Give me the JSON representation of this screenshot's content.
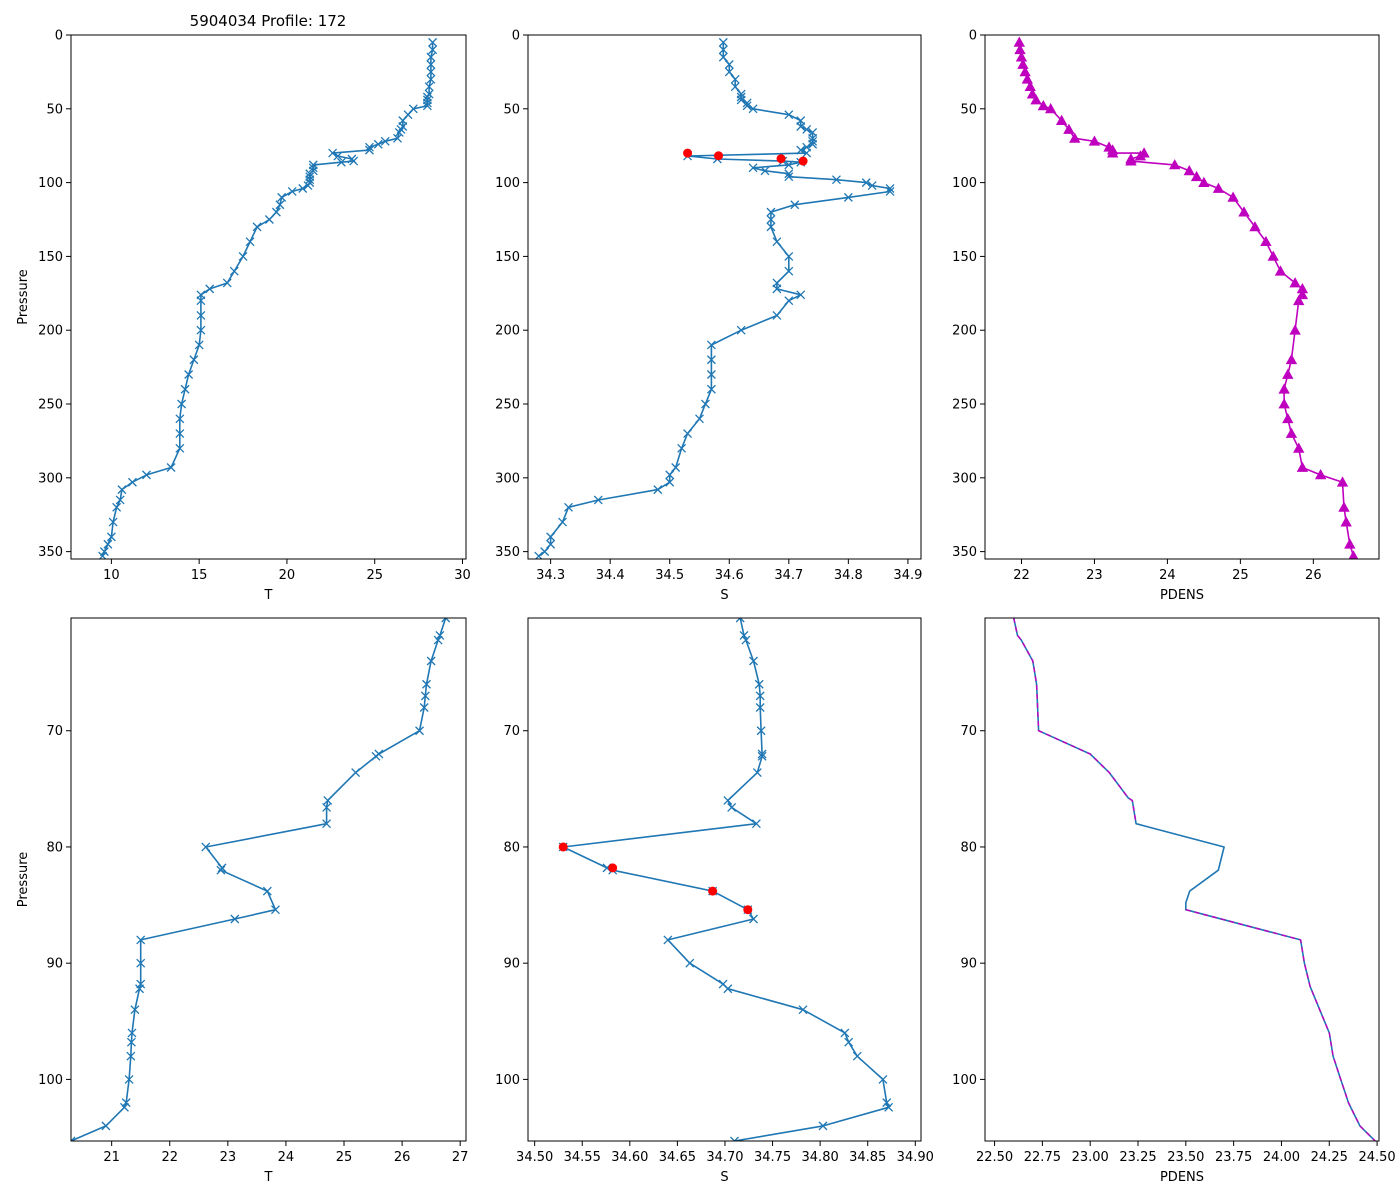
{
  "figure_title": "5904034 Profile: 172",
  "colors": {
    "line": "#1f77b4",
    "flag": "#ff0000",
    "density": "#bf00bf",
    "frame": "#000000"
  },
  "chart_data": [
    {
      "id": "top-temperature",
      "type": "line",
      "title": "5904034 Profile: 172",
      "xlabel": "T",
      "ylabel": "Pressure",
      "xlim": [
        7.7,
        30.2
      ],
      "ylim": [
        355,
        0
      ],
      "xticks": [
        10,
        15,
        20,
        25,
        30
      ],
      "yticks": [
        0,
        50,
        100,
        150,
        200,
        250,
        300,
        350
      ],
      "marker": "x",
      "series": [
        {
          "name": "T",
          "color": "#1f77b4",
          "x": [
            28.3,
            28.3,
            28.2,
            28.2,
            28.2,
            28.2,
            28.1,
            28.1,
            28.0,
            28.0,
            28.0,
            28.0,
            27.2,
            26.9,
            26.6,
            26.6,
            26.5,
            26.4,
            26.3,
            25.6,
            25.2,
            24.7,
            24.7,
            22.6,
            22.9,
            23.7,
            23.8,
            23.1,
            21.5,
            21.5,
            21.5,
            21.3,
            21.3,
            21.3,
            21.3,
            21.2,
            20.9,
            20.3,
            19.7,
            19.6,
            19.4,
            19.0,
            18.3,
            17.9,
            17.5,
            17.0,
            16.6,
            15.6,
            15.1,
            15.1,
            15.1,
            15.1,
            15.0,
            14.7,
            14.4,
            14.2,
            14.0,
            13.9,
            13.9,
            13.9,
            13.4,
            12.0,
            11.2,
            10.6,
            10.5,
            10.3,
            10.1,
            10.0,
            9.8,
            9.6,
            9.5
          ],
          "y": [
            5,
            10,
            15,
            20,
            25,
            30,
            35,
            40,
            42,
            44,
            46,
            48,
            50,
            54,
            58,
            62,
            64,
            66,
            70,
            72,
            74,
            76,
            78,
            80,
            82,
            84,
            85.4,
            86.2,
            88,
            90,
            92,
            94,
            96,
            98,
            100,
            102,
            104,
            106,
            110,
            115,
            120,
            125,
            130,
            140,
            150,
            160,
            168,
            172,
            176,
            180,
            190,
            200,
            210,
            220,
            230,
            240,
            250,
            260,
            270,
            280,
            293,
            298,
            303,
            308,
            315,
            320,
            330,
            340,
            345,
            350,
            353
          ]
        }
      ],
      "flagged": {
        "x": [],
        "y": []
      }
    },
    {
      "id": "top-salinity",
      "type": "line",
      "title": "",
      "xlabel": "S",
      "ylabel": "",
      "xlim": [
        34.262,
        34.922
      ],
      "ylim": [
        355,
        0
      ],
      "xticks": [
        34.3,
        34.4,
        34.5,
        34.6,
        34.7,
        34.8,
        34.9
      ],
      "xtick_labels": [
        "34.3",
        "34.4",
        "34.5",
        "34.6",
        "34.7",
        "34.8",
        "34.9"
      ],
      "yticks": [
        0,
        50,
        100,
        150,
        200,
        250,
        300,
        350
      ],
      "marker": "x",
      "series": [
        {
          "name": "S",
          "color": "#1f77b4",
          "x": [
            34.59,
            34.59,
            34.59,
            34.6,
            34.6,
            34.61,
            34.61,
            34.62,
            34.62,
            34.62,
            34.63,
            34.63,
            34.64,
            34.7,
            34.72,
            34.72,
            34.73,
            34.74,
            34.74,
            34.74,
            34.74,
            34.73,
            34.72,
            34.73,
            34.53,
            34.58,
            34.69,
            34.72,
            34.7,
            34.64,
            34.66,
            34.7,
            34.7,
            34.78,
            34.83,
            34.84,
            34.87,
            34.87,
            34.8,
            34.71,
            34.67,
            34.67,
            34.67,
            34.68,
            34.7,
            34.7,
            34.68,
            34.68,
            34.72,
            34.7,
            34.68,
            34.62,
            34.57,
            34.57,
            34.57,
            34.57,
            34.56,
            34.55,
            34.53,
            34.52,
            34.51,
            34.5,
            34.5,
            34.48,
            34.38,
            34.33,
            34.32,
            34.3,
            34.3,
            34.29,
            34.28
          ],
          "y": [
            5,
            10,
            15,
            20,
            25,
            30,
            35,
            40,
            42,
            44,
            46,
            48,
            50,
            54,
            58,
            62,
            64,
            66,
            70,
            72,
            74,
            76,
            78,
            80,
            82,
            84,
            85.4,
            86.2,
            88,
            90,
            92,
            94,
            96,
            98,
            100,
            102,
            104,
            106,
            110,
            115,
            120,
            125,
            130,
            140,
            150,
            160,
            168,
            172,
            176,
            180,
            190,
            200,
            210,
            220,
            230,
            240,
            250,
            260,
            270,
            280,
            293,
            298,
            303,
            308,
            315,
            320,
            330,
            340,
            345,
            350,
            353
          ]
        }
      ],
      "flagged": {
        "x": [
          34.53,
          34.582,
          34.687,
          34.724
        ],
        "y": [
          80,
          81.8,
          83.8,
          85.4
        ]
      }
    },
    {
      "id": "top-density",
      "type": "line",
      "title": "",
      "xlabel": "PDENS",
      "ylabel": "",
      "xlim": [
        21.5,
        26.9
      ],
      "ylim": [
        355,
        0
      ],
      "xticks": [
        22,
        23,
        24,
        25,
        26
      ],
      "yticks": [
        0,
        50,
        100,
        150,
        200,
        250,
        300,
        350
      ],
      "marker": "triangle",
      "series": [
        {
          "name": "PDENS",
          "color": "#bf00bf",
          "x": [
            21.97,
            21.98,
            22.0,
            22.02,
            22.05,
            22.08,
            22.12,
            22.15,
            22.2,
            22.3,
            22.4,
            22.55,
            22.65,
            22.73,
            23.0,
            23.2,
            23.25,
            23.25,
            23.68,
            23.63,
            23.5,
            23.5,
            24.1,
            24.3,
            24.4,
            24.5,
            24.7,
            24.9,
            25.05,
            25.2,
            25.35,
            25.45,
            25.55,
            25.75,
            25.85,
            25.85,
            25.8,
            25.75,
            25.7,
            25.65,
            25.6,
            25.6,
            25.65,
            25.7,
            25.8,
            25.85,
            26.1,
            26.4,
            26.42,
            26.45,
            26.5,
            26.55
          ],
          "y": [
            5,
            10,
            15,
            20,
            25,
            30,
            35,
            40,
            44,
            48,
            50,
            58,
            64,
            70,
            72,
            76,
            78,
            80,
            80,
            82,
            84,
            85.4,
            88,
            92,
            96,
            100,
            104,
            110,
            120,
            130,
            140,
            150,
            160,
            168,
            172,
            176,
            180,
            200,
            220,
            230,
            240,
            250,
            260,
            270,
            280,
            293,
            298,
            303,
            320,
            330,
            345,
            353
          ]
        }
      ],
      "flagged": {
        "x": [],
        "y": []
      }
    },
    {
      "id": "bottom-temperature",
      "type": "line",
      "title": "",
      "xlabel": "T",
      "ylabel": "Pressure",
      "xlim": [
        20.3,
        27.1
      ],
      "ylim": [
        105.3,
        60.3
      ],
      "xticks": [
        21,
        22,
        23,
        24,
        25,
        26,
        27
      ],
      "yticks": [
        70,
        80,
        90,
        100
      ],
      "marker": "x",
      "series": [
        {
          "name": "T",
          "color": "#1f77b4",
          "x": [
            26.75,
            26.65,
            26.62,
            26.5,
            26.42,
            26.4,
            26.38,
            26.3,
            25.6,
            25.55,
            25.2,
            24.72,
            24.7,
            24.7,
            22.62,
            22.9,
            22.88,
            23.68,
            23.82,
            23.12,
            21.5,
            21.5,
            21.5,
            21.48,
            21.4,
            21.35,
            21.34,
            21.33,
            21.3,
            21.25,
            21.22,
            20.9,
            20.3
          ],
          "y": [
            60.3,
            61.8,
            62.2,
            64,
            66,
            67,
            68,
            70,
            72,
            72.2,
            73.6,
            76,
            76.6,
            78,
            80,
            81.8,
            82,
            83.8,
            85.4,
            86.2,
            88,
            90,
            91.8,
            92.2,
            94,
            96,
            96.8,
            98,
            100,
            102,
            102.4,
            104,
            105.3
          ]
        }
      ],
      "flagged": {
        "x": [],
        "y": []
      }
    },
    {
      "id": "bottom-salinity",
      "type": "line",
      "title": "",
      "xlabel": "S",
      "ylabel": "",
      "xlim": [
        34.493,
        34.906
      ],
      "ylim": [
        105.3,
        60.3
      ],
      "xticks": [
        34.5,
        34.55,
        34.6,
        34.65,
        34.7,
        34.75,
        34.8,
        34.85,
        34.9
      ],
      "xtick_labels": [
        "34.50",
        "34.55",
        "34.60",
        "34.65",
        "34.70",
        "34.75",
        "34.80",
        "34.85",
        "34.90"
      ],
      "yticks": [
        70,
        80,
        90,
        100
      ],
      "marker": "x",
      "series": [
        {
          "name": "S",
          "color": "#1f77b4",
          "x": [
            34.716,
            34.72,
            34.722,
            34.73,
            34.736,
            34.737,
            34.737,
            34.738,
            34.739,
            34.739,
            34.734,
            34.703,
            34.707,
            34.733,
            34.53,
            34.576,
            34.582,
            34.687,
            34.724,
            34.73,
            34.64,
            34.663,
            34.698,
            34.703,
            34.782,
            34.826,
            34.83,
            34.839,
            34.866,
            34.87,
            34.872,
            34.803,
            34.71
          ],
          "y": [
            60.3,
            61.8,
            62.2,
            64,
            66,
            67,
            68,
            70,
            72,
            72.2,
            73.6,
            76,
            76.6,
            78,
            80,
            81.8,
            82,
            83.8,
            85.4,
            86.2,
            88,
            90,
            91.8,
            92.2,
            94,
            96,
            96.8,
            98,
            100,
            102,
            102.4,
            104,
            105.3
          ]
        }
      ],
      "flagged": {
        "x": [
          34.53,
          34.582,
          34.687,
          34.724
        ],
        "y": [
          80,
          81.8,
          83.8,
          85.4
        ]
      }
    },
    {
      "id": "bottom-density",
      "type": "line",
      "title": "",
      "xlabel": "PDENS",
      "ylabel": "",
      "xlim": [
        22.45,
        24.51
      ],
      "ylim": [
        105.3,
        60.3
      ],
      "xticks": [
        22.5,
        22.75,
        23.0,
        23.25,
        23.5,
        23.75,
        24.0,
        24.25,
        24.5
      ],
      "xtick_labels": [
        "22.50",
        "22.75",
        "23.00",
        "23.25",
        "23.50",
        "23.75",
        "24.00",
        "24.25",
        "24.50"
      ],
      "yticks": [
        70,
        80,
        90,
        100
      ],
      "marker": "none",
      "series": [
        {
          "name": "PDENS",
          "color": "#1f77b4",
          "x": [
            22.6,
            22.62,
            22.64,
            22.7,
            22.72,
            22.73,
            23.0,
            23.1,
            23.2,
            23.22,
            23.24,
            23.7,
            23.67,
            23.52,
            23.5,
            23.5,
            24.1,
            24.12,
            24.15,
            24.2,
            24.25,
            24.26,
            24.27,
            24.29,
            24.31,
            24.33,
            24.35,
            24.41,
            24.49
          ],
          "y": [
            60.3,
            61.8,
            62.2,
            64,
            66,
            70,
            72,
            73.6,
            75.8,
            76,
            78,
            80,
            82,
            83.8,
            84.8,
            85.4,
            88,
            90,
            92,
            94,
            96,
            97,
            98,
            99,
            100,
            101,
            102,
            104,
            105.3
          ]
        },
        {
          "name": "PDENS-dashed",
          "color": "#bf00bf",
          "dashed": true,
          "x": [
            22.6,
            22.62,
            22.64,
            22.7,
            22.72,
            22.73,
            23.0,
            23.1,
            23.2,
            23.22,
            23.24
          ],
          "y": [
            60.3,
            61.8,
            62.2,
            64,
            66,
            70,
            72,
            73.6,
            75.8,
            76,
            78
          ]
        },
        {
          "name": "PDENS-dashed-lower",
          "color": "#bf00bf",
          "dashed": true,
          "x": [
            23.5,
            24.1,
            24.12,
            24.15,
            24.2,
            24.25,
            24.26,
            24.27,
            24.29,
            24.31,
            24.33,
            24.35,
            24.41,
            24.49
          ],
          "y": [
            85.4,
            88,
            90,
            92,
            94,
            96,
            97,
            98,
            99,
            100,
            101,
            102,
            104,
            105.3
          ]
        }
      ],
      "flagged": {
        "x": [],
        "y": []
      }
    }
  ]
}
